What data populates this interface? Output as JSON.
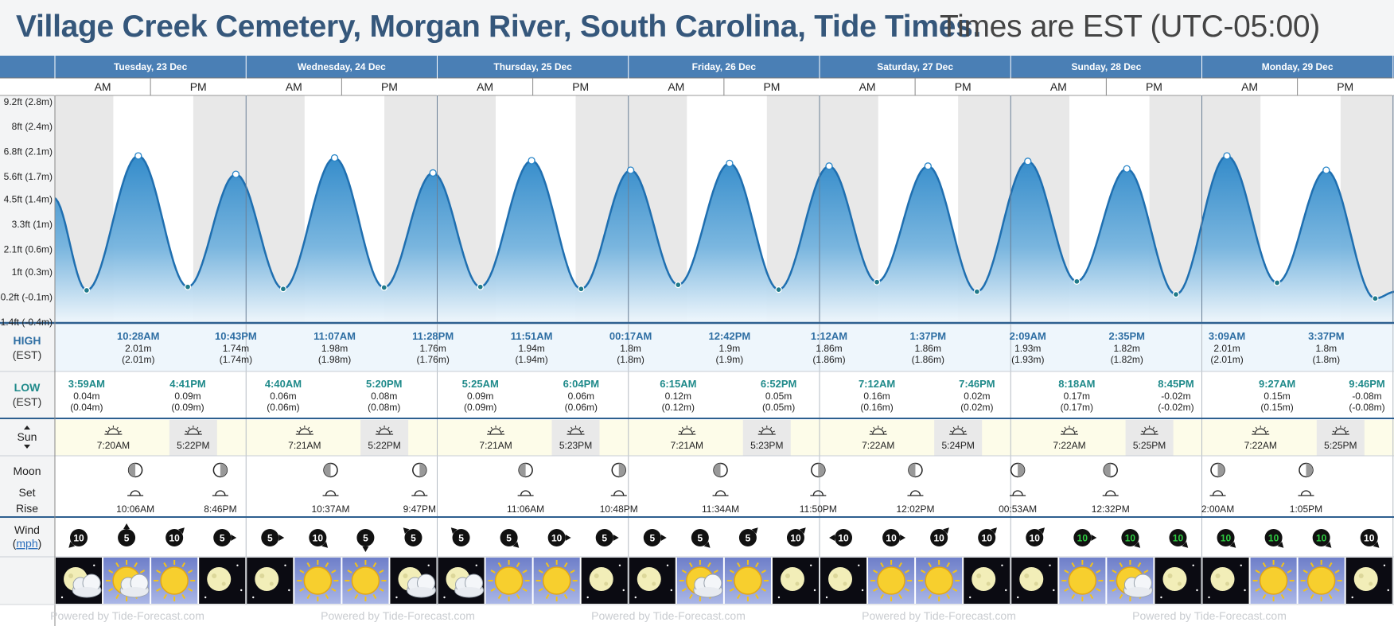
{
  "header": {
    "title": "Village Creek Cemetery, Morgan River, South Carolina, Tide Times.",
    "subtitle": "Times are EST (UTC-05:00)"
  },
  "colors": {
    "header_blue": "#4a7fb5",
    "title_blue": "#35577b",
    "high_label": "#2e6ea3",
    "low_label": "#1f8a8a",
    "night_band": "#e8e8e8",
    "sun_row": "#fdfce9",
    "wind_green": "#2ecc40"
  },
  "days": [
    {
      "label": "Tuesday, 23 Dec"
    },
    {
      "label": "Wednesday, 24 Dec"
    },
    {
      "label": "Thursday, 25 Dec"
    },
    {
      "label": "Friday, 26 Dec"
    },
    {
      "label": "Saturday, 27 Dec"
    },
    {
      "label": "Sunday, 28 Dec"
    },
    {
      "label": "Monday, 29 Dec"
    }
  ],
  "am_label": "AM",
  "pm_label": "PM",
  "row_labels": {
    "high": "HIGH",
    "high_sub": "(EST)",
    "low": "LOW",
    "low_sub": "(EST)",
    "sun": "Sun",
    "moon": "Moon",
    "moon_set": "Set",
    "moon_rise": "Rise",
    "wind": "Wind",
    "wind_unit": "mph"
  },
  "chart_data": {
    "type": "area",
    "title": "Village Creek Cemetery, Morgan River, South Carolina, Tide Times.",
    "y_tick_labels": [
      "9.2ft (2.8m)",
      "8ft (2.4m)",
      "6.8ft (2.1m)",
      "5.6ft (1.7m)",
      "4.5ft (1.4m)",
      "3.3ft (1m)",
      "2.1ft (0.6m)",
      "1ft (0.3m)",
      "-0.2ft (-0.1m)",
      "-1.4ft (-0.4m)"
    ],
    "y_ticks_ft": [
      9.2,
      8,
      6.8,
      5.6,
      4.5,
      3.3,
      2.1,
      1,
      -0.2,
      -1.4
    ],
    "ylim_ft": [
      -1.4,
      9.5
    ],
    "start_height_m": 1.4,
    "end_height_m": 0.02,
    "events": [
      {
        "type": "low",
        "day": 0,
        "time": "3:59AM",
        "m": 0.04,
        "m_paren": "(0.04m)"
      },
      {
        "type": "high",
        "day": 0,
        "time": "10:28AM",
        "m": 2.01,
        "m_paren": "(2.01m)"
      },
      {
        "type": "low",
        "day": 0,
        "time": "4:41PM",
        "m": 0.09,
        "m_paren": "(0.09m)"
      },
      {
        "type": "high",
        "day": 0,
        "time": "10:43PM",
        "m": 1.74,
        "m_paren": "(1.74m)"
      },
      {
        "type": "low",
        "day": 1,
        "time": "4:40AM",
        "m": 0.06,
        "m_paren": "(0.06m)"
      },
      {
        "type": "high",
        "day": 1,
        "time": "11:07AM",
        "m": 1.98,
        "m_paren": "(1.98m)"
      },
      {
        "type": "low",
        "day": 1,
        "time": "5:20PM",
        "m": 0.08,
        "m_paren": "(0.08m)"
      },
      {
        "type": "high",
        "day": 1,
        "time": "11:28PM",
        "m": 1.76,
        "m_paren": "(1.76m)"
      },
      {
        "type": "low",
        "day": 2,
        "time": "5:25AM",
        "m": 0.09,
        "m_paren": "(0.09m)"
      },
      {
        "type": "high",
        "day": 2,
        "time": "11:51AM",
        "m": 1.94,
        "m_paren": "(1.94m)"
      },
      {
        "type": "low",
        "day": 2,
        "time": "6:04PM",
        "m": 0.06,
        "m_paren": "(0.06m)"
      },
      {
        "type": "high",
        "day": 3,
        "time": "00:17AM",
        "m": 1.8,
        "m_paren": "(1.8m)"
      },
      {
        "type": "low",
        "day": 3,
        "time": "6:15AM",
        "m": 0.12,
        "m_paren": "(0.12m)"
      },
      {
        "type": "high",
        "day": 3,
        "time": "12:42PM",
        "m": 1.9,
        "m_paren": "(1.9m)"
      },
      {
        "type": "low",
        "day": 3,
        "time": "6:52PM",
        "m": 0.05,
        "m_paren": "(0.05m)"
      },
      {
        "type": "high",
        "day": 4,
        "time": "1:12AM",
        "m": 1.86,
        "m_paren": "(1.86m)"
      },
      {
        "type": "low",
        "day": 4,
        "time": "7:12AM",
        "m": 0.16,
        "m_paren": "(0.16m)"
      },
      {
        "type": "high",
        "day": 4,
        "time": "1:37PM",
        "m": 1.86,
        "m_paren": "(1.86m)"
      },
      {
        "type": "low",
        "day": 4,
        "time": "7:46PM",
        "m": 0.02,
        "m_paren": "(0.02m)"
      },
      {
        "type": "high",
        "day": 5,
        "time": "2:09AM",
        "m": 1.93,
        "m_paren": "(1.93m)"
      },
      {
        "type": "low",
        "day": 5,
        "time": "8:18AM",
        "m": 0.17,
        "m_paren": "(0.17m)"
      },
      {
        "type": "high",
        "day": 5,
        "time": "2:35PM",
        "m": 1.82,
        "m_paren": "(1.82m)"
      },
      {
        "type": "low",
        "day": 5,
        "time": "8:45PM",
        "m": -0.02,
        "m_paren": "(-0.02m)"
      },
      {
        "type": "high",
        "day": 6,
        "time": "3:09AM",
        "m": 2.01,
        "m_paren": "(2.01m)"
      },
      {
        "type": "low",
        "day": 6,
        "time": "9:27AM",
        "m": 0.15,
        "m_paren": "(0.15m)"
      },
      {
        "type": "high",
        "day": 6,
        "time": "3:37PM",
        "m": 1.8,
        "m_paren": "(1.8m)"
      },
      {
        "type": "low",
        "day": 6,
        "time": "9:46PM",
        "m": -0.08,
        "m_paren": "(-0.08m)"
      }
    ]
  },
  "sun": [
    {
      "rise": "7:20AM",
      "set": "5:22PM"
    },
    {
      "rise": "7:21AM",
      "set": "5:22PM"
    },
    {
      "rise": "7:21AM",
      "set": "5:23PM"
    },
    {
      "rise": "7:21AM",
      "set": "5:23PM"
    },
    {
      "rise": "7:22AM",
      "set": "5:24PM"
    },
    {
      "rise": "7:22AM",
      "set": "5:25PM"
    },
    {
      "rise": "7:22AM",
      "set": "5:25PM"
    }
  ],
  "moon": [
    {
      "kind": "set",
      "day": 0,
      "time": "10:06AM",
      "phase": "half-left"
    },
    {
      "kind": "rise",
      "day": 0,
      "time": "8:46PM",
      "phase": "half-right"
    },
    {
      "kind": "set",
      "day": 1,
      "time": "10:37AM",
      "phase": "half-left"
    },
    {
      "kind": "rise",
      "day": 1,
      "time": "9:47PM",
      "phase": "half-right"
    },
    {
      "kind": "set",
      "day": 2,
      "time": "11:06AM",
      "phase": "half-left"
    },
    {
      "kind": "rise",
      "day": 2,
      "time": "10:48PM",
      "phase": "half-right"
    },
    {
      "kind": "set",
      "day": 3,
      "time": "11:34AM",
      "phase": "half-left"
    },
    {
      "kind": "rise",
      "day": 3,
      "time": "11:50PM",
      "phase": "half-right"
    },
    {
      "kind": "set",
      "day": 4,
      "time": "12:02PM",
      "phase": "half-left"
    },
    {
      "kind": "rise",
      "day": 5,
      "time": "00:53AM",
      "phase": "half-right"
    },
    {
      "kind": "set",
      "day": 5,
      "time": "12:32PM",
      "phase": "half-left"
    },
    {
      "kind": "rise",
      "day": 6,
      "time": "2:00AM",
      "phase": "half-right"
    },
    {
      "kind": "set",
      "day": 6,
      "time": "1:05PM",
      "phase": "half-right"
    }
  ],
  "wind": [
    {
      "speed": "10",
      "dir": "sw"
    },
    {
      "speed": "5",
      "dir": "n"
    },
    {
      "speed": "10",
      "dir": "ne"
    },
    {
      "speed": "5",
      "dir": "e"
    },
    {
      "speed": "5",
      "dir": "e"
    },
    {
      "speed": "10",
      "dir": "se"
    },
    {
      "speed": "5",
      "dir": "s"
    },
    {
      "speed": "5",
      "dir": "nw"
    },
    {
      "speed": "5",
      "dir": "nw"
    },
    {
      "speed": "5",
      "dir": "se"
    },
    {
      "speed": "10",
      "dir": "e"
    },
    {
      "speed": "5",
      "dir": "e"
    },
    {
      "speed": "5",
      "dir": "e"
    },
    {
      "speed": "5",
      "dir": "se"
    },
    {
      "speed": "5",
      "dir": "ne"
    },
    {
      "speed": "10",
      "dir": "ne"
    },
    {
      "speed": "10",
      "dir": "w"
    },
    {
      "speed": "10",
      "dir": "e"
    },
    {
      "speed": "10",
      "dir": "ne"
    },
    {
      "speed": "10",
      "dir": "ne"
    },
    {
      "speed": "10",
      "dir": "ne"
    },
    {
      "speed": "10",
      "dir": "e",
      "green": true
    },
    {
      "speed": "10",
      "dir": "se",
      "green": true
    },
    {
      "speed": "10",
      "dir": "se",
      "green": true
    },
    {
      "speed": "10",
      "dir": "se",
      "green": true
    },
    {
      "speed": "10",
      "dir": "se",
      "green": true
    },
    {
      "speed": "10",
      "dir": "se",
      "green": true
    },
    {
      "speed": "10",
      "dir": "se"
    }
  ],
  "weather": [
    "moon-cloud",
    "sun-cloud",
    "sun",
    "moon",
    "moon",
    "sun",
    "sun",
    "moon-cloud",
    "moon-cloud",
    "sun",
    "sun",
    "moon",
    "moon",
    "sun-cloud",
    "sun",
    "moon",
    "moon",
    "sun",
    "sun",
    "moon",
    "moon",
    "sun",
    "sun-cloud",
    "moon",
    "moon",
    "sun",
    "sun",
    "moon"
  ],
  "footer": {
    "powered_by": "Powered by Tide-Forecast.com"
  }
}
